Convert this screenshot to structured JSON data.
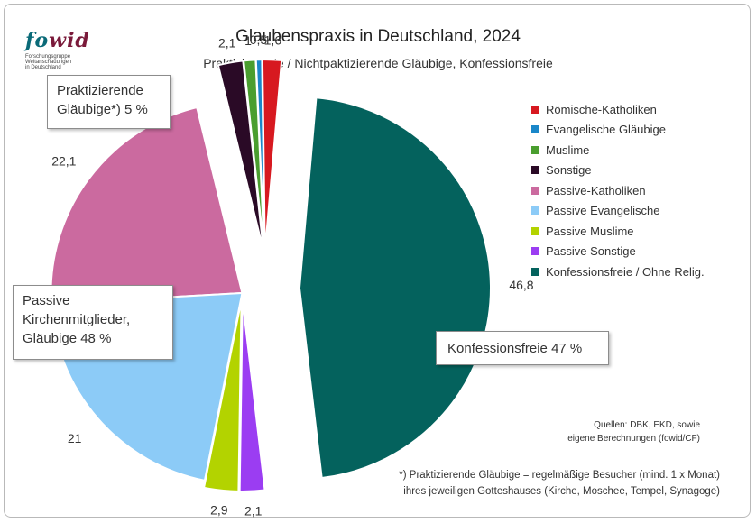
{
  "logo": {
    "text_fo": "fo",
    "text_wid": "wid",
    "subtitle": "Forschungsgruppe\nWeltanschauungen\nin Deutschland"
  },
  "chart_data": {
    "type": "pie",
    "title": "Glaubenspraxis in Deutschland, 2024",
    "subtitle": "Praktizierende / Nichtpaktizierende Gläubige, Konfessionsfreie",
    "slices": [
      {
        "name": "Römische-Katholiken",
        "value": 1.6,
        "label": "1,6",
        "color": "#d71920",
        "group": "praktizierende"
      },
      {
        "name": "Evangelische Gläubige",
        "value": 0.5,
        "label": "0,5",
        "color": "#1a87c9",
        "group": "praktizierende"
      },
      {
        "name": "Muslime",
        "value": 1.0,
        "label": "1",
        "color": "#4a9e2f",
        "group": "praktizierende"
      },
      {
        "name": "Sonstige",
        "value": 2.1,
        "label": "2,1",
        "color": "#2a0a26",
        "group": "praktizierende"
      },
      {
        "name": "Passive-Katholiken",
        "value": 22.1,
        "label": "22,1",
        "color": "#cb6a9f",
        "group": "passive"
      },
      {
        "name": "Passive Evangelische",
        "value": 21.0,
        "label": "21",
        "color": "#8ccbf7",
        "group": "passive"
      },
      {
        "name": "Passive Muslime",
        "value": 2.9,
        "label": "2,9",
        "color": "#b3d300",
        "group": "passive"
      },
      {
        "name": "Passive Sonstige",
        "value": 2.1,
        "label": "2,1",
        "color": "#9b3df2",
        "group": "passive"
      },
      {
        "name": "Konfessionsfreie / Ohne Relig.",
        "value": 46.8,
        "label": "46,8",
        "color": "#04625d",
        "group": "konfessionsfrei"
      }
    ],
    "legend_position": "right"
  },
  "callouts": {
    "praktizierende": "Praktizierende\nGläubige*) 5 %",
    "passive": "Passive\nKirchenmitglieder,\nGläubige  48 %",
    "konfessionsfrei": "Konfessionsfreie  47 %"
  },
  "source": "Quellen: DBK, EKD, sowie\neigene Berechnungen (fowid/CF)",
  "footnote": "*) Praktizierende Gläubige = regelmäßige Besucher (mind. 1 x Monat)\nihres jeweiligen Gotteshauses (Kirche, Moschee, Tempel, Synagoge)"
}
